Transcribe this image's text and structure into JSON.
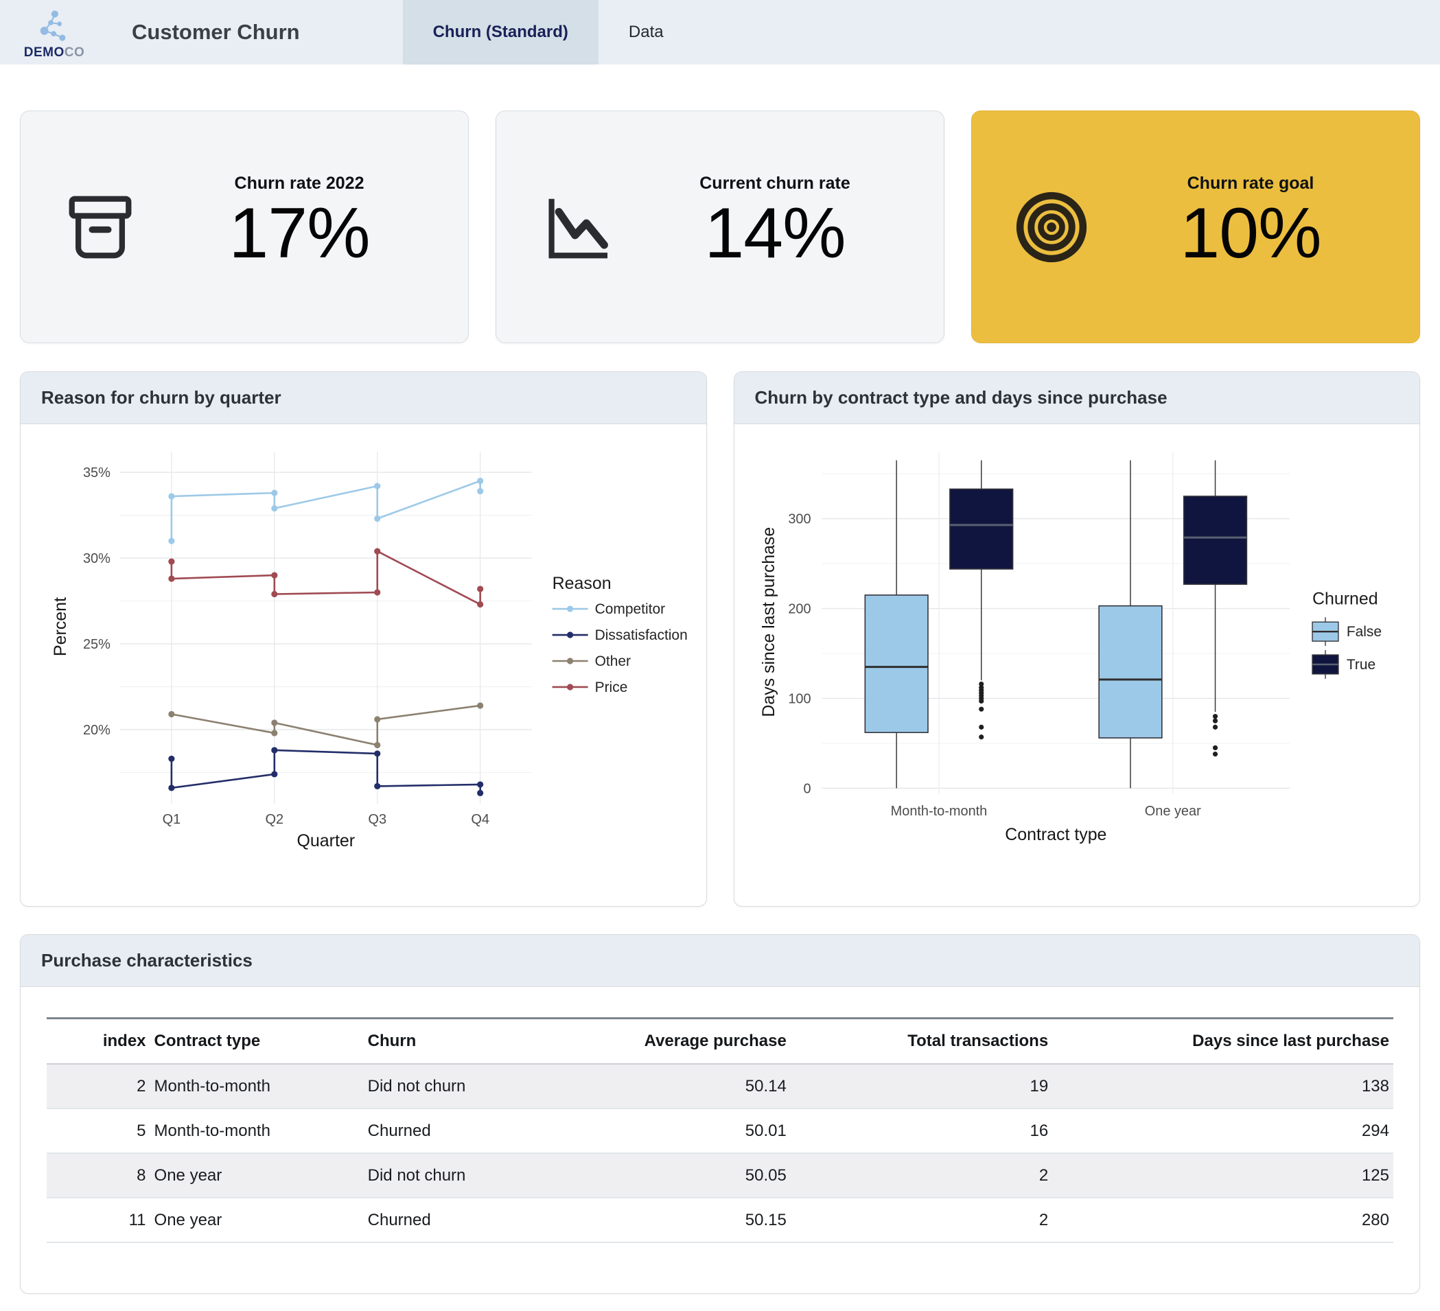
{
  "header": {
    "logo": {
      "demo": "DEMO",
      "co": "CO"
    },
    "title": "Customer Churn",
    "tabs": [
      {
        "label": "Churn (Standard)",
        "active": true
      },
      {
        "label": "Data",
        "active": false
      }
    ]
  },
  "kpis": [
    {
      "label": "Churn rate 2022",
      "value": "17%",
      "icon": "archive-box-icon"
    },
    {
      "label": "Current churn rate",
      "value": "14%",
      "icon": "chart-down-icon"
    },
    {
      "label": "Churn rate goal",
      "value": "10%",
      "icon": "target-icon",
      "highlight": true
    }
  ],
  "colors": {
    "header_bg": "#e9eef4",
    "active_tab_bg": "#d5dfe7",
    "panel_header_bg": "#e7edf2",
    "card_bg": "#f3f5f7",
    "accent_gold": "#ecbe3f",
    "churned_false": "#9dc9e8",
    "churned_true": "#10153f"
  },
  "chart_data": [
    {
      "type": "line",
      "title": "Reason for churn by quarter",
      "xlabel": "Quarter",
      "ylabel": "Percent",
      "categories": [
        "Q1",
        "Q2",
        "Q3",
        "Q4"
      ],
      "ylim": [
        16,
        36
      ],
      "grid": true,
      "legend_position": "right",
      "legend_title": "Reason",
      "y_ticks": [
        {
          "value": 20,
          "label": "20%"
        },
        {
          "value": 25,
          "label": "25%"
        },
        {
          "value": 30,
          "label": "30%"
        },
        {
          "value": 35,
          "label": "35%"
        }
      ],
      "series": [
        {
          "name": "Competitor",
          "color": "#9dc9e8",
          "points": [
            [
              0,
              31.0
            ],
            [
              0,
              33.6
            ],
            [
              1,
              33.8
            ],
            [
              1,
              32.9
            ],
            [
              2,
              34.2
            ],
            [
              2,
              32.3
            ],
            [
              3,
              34.5
            ],
            [
              3,
              33.9
            ]
          ]
        },
        {
          "name": "Dissatisfaction",
          "color": "#232d69",
          "points": [
            [
              0,
              18.3
            ],
            [
              0,
              16.6
            ],
            [
              1,
              17.4
            ],
            [
              1,
              18.8
            ],
            [
              2,
              18.6
            ],
            [
              2,
              16.7
            ],
            [
              3,
              16.8
            ],
            [
              3,
              16.3
            ]
          ]
        },
        {
          "name": "Other",
          "color": "#8c8170",
          "points": [
            [
              0,
              20.9
            ],
            [
              1,
              19.8
            ],
            [
              1,
              20.4
            ],
            [
              2,
              19.1
            ],
            [
              2,
              20.6
            ],
            [
              3,
              21.4
            ]
          ]
        },
        {
          "name": "Price",
          "color": "#a04a52",
          "points": [
            [
              0,
              29.8
            ],
            [
              0,
              28.8
            ],
            [
              1,
              29.0
            ],
            [
              1,
              27.9
            ],
            [
              2,
              28.0
            ],
            [
              2,
              30.4
            ],
            [
              3,
              27.3
            ],
            [
              3,
              28.2
            ]
          ]
        }
      ]
    },
    {
      "type": "boxplot",
      "title": "Churn by contract type and days since purchase",
      "xlabel": "Contract type",
      "ylabel": "Days since last purchase",
      "categories": [
        "Month-to-month",
        "One year"
      ],
      "ylim": [
        0,
        370
      ],
      "legend_title": "Churned",
      "legend_entries": [
        "False",
        "True"
      ],
      "y_ticks": [
        {
          "value": 0,
          "label": "0"
        },
        {
          "value": 100,
          "label": "100"
        },
        {
          "value": 200,
          "label": "200"
        },
        {
          "value": 300,
          "label": "300"
        }
      ],
      "groups": [
        {
          "category": "Month-to-month",
          "boxes": [
            {
              "churned": "False",
              "color": "#9dc9e8",
              "whisker_low": 0,
              "q1": 62,
              "median": 135,
              "q3": 215,
              "whisker_high": 365,
              "outliers": []
            },
            {
              "churned": "True",
              "color": "#10153f",
              "whisker_low": 120,
              "q1": 244,
              "median": 293,
              "q3": 333,
              "whisker_high": 365,
              "outliers": [
                116,
                112,
                109,
                106,
                103,
                100,
                97,
                88,
                68,
                57
              ]
            }
          ]
        },
        {
          "category": "One year",
          "boxes": [
            {
              "churned": "False",
              "color": "#9dc9e8",
              "whisker_low": 0,
              "q1": 56,
              "median": 121,
              "q3": 203,
              "whisker_high": 365,
              "outliers": []
            },
            {
              "churned": "True",
              "color": "#10153f",
              "whisker_low": 85,
              "q1": 227,
              "median": 279,
              "q3": 325,
              "whisker_high": 365,
              "outliers": [
                80,
                75,
                68,
                45,
                38
              ]
            }
          ]
        }
      ]
    }
  ],
  "table": {
    "title": "Purchase characteristics",
    "headers": [
      "index",
      "Contract type",
      "Churn",
      "Average purchase",
      "Total transactions",
      "Days since last purchase"
    ],
    "rows": [
      [
        "2",
        "Month-to-month",
        "Did not churn",
        "50.14",
        "19",
        "138"
      ],
      [
        "5",
        "Month-to-month",
        "Churned",
        "50.01",
        "16",
        "294"
      ],
      [
        "8",
        "One year",
        "Did not churn",
        "50.05",
        "2",
        "125"
      ],
      [
        "11",
        "One year",
        "Churned",
        "50.15",
        "2",
        "280"
      ]
    ]
  }
}
